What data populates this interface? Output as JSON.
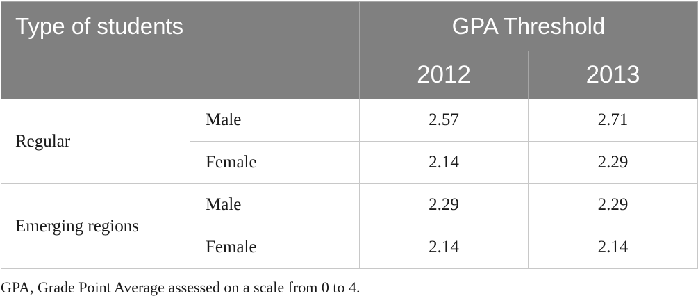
{
  "table": {
    "header": {
      "row_label": "Type of students",
      "group_label": "GPA Threshold",
      "years": [
        "2012",
        "2013"
      ]
    },
    "groups": [
      {
        "name": "Regular",
        "rows": [
          {
            "sex": "Male",
            "v2012": "2.57",
            "v2013": "2.71"
          },
          {
            "sex": "Female",
            "v2012": "2.14",
            "v2013": "2.29"
          }
        ]
      },
      {
        "name": "Emerging regions",
        "rows": [
          {
            "sex": "Male",
            "v2012": "2.29",
            "v2013": "2.29"
          },
          {
            "sex": "Female",
            "v2012": "2.14",
            "v2013": "2.14"
          }
        ]
      }
    ]
  },
  "footnote": "GPA, Grade Point Average assessed on a scale from 0 to 4.",
  "colors": {
    "header_bg": "#808080",
    "header_text": "#ffffff",
    "body_text": "#1a1a1a",
    "grid": "#c8c8c8"
  }
}
